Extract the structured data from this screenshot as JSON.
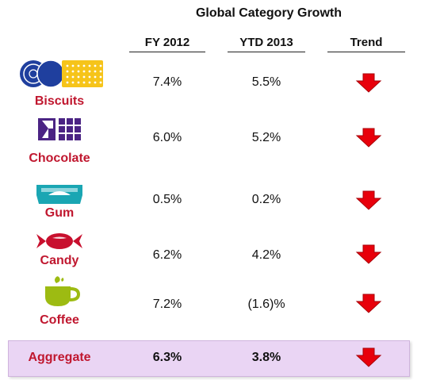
{
  "table": {
    "title": "Global Category Growth",
    "columns": [
      "FY 2012",
      "YTD 2013",
      "Trend"
    ],
    "rows": [
      {
        "category": "Biscuits",
        "icon": "biscuits-icon",
        "fy2012": "7.4%",
        "ytd2013": "5.5%",
        "trend": "down"
      },
      {
        "category": "Chocolate",
        "icon": "chocolate-icon",
        "fy2012": "6.0%",
        "ytd2013": "5.2%",
        "trend": "down"
      },
      {
        "category": "Gum",
        "icon": "gum-icon",
        "fy2012": "0.5%",
        "ytd2013": "0.2%",
        "trend": "down"
      },
      {
        "category": "Candy",
        "icon": "candy-icon",
        "fy2012": "6.2%",
        "ytd2013": "4.2%",
        "trend": "down"
      },
      {
        "category": "Coffee",
        "icon": "coffee-icon",
        "fy2012": "7.2%",
        "ytd2013": "(1.6)%",
        "trend": "down"
      }
    ],
    "aggregate": {
      "category": "Aggregate",
      "fy2012": "6.3%",
      "ytd2013": "3.8%",
      "trend": "down"
    }
  },
  "colors": {
    "label": "#c0172f",
    "trend_arrow": "#e8000b",
    "aggregate_bg": "#ead5f4",
    "biscuit_blue": "#1f3f9e",
    "biscuit_yellow": "#f6c41a",
    "chocolate_purple": "#4b2484",
    "gum_teal": "#1aa6b3",
    "candy_red": "#c8102e",
    "coffee_green": "#9dbb12"
  }
}
